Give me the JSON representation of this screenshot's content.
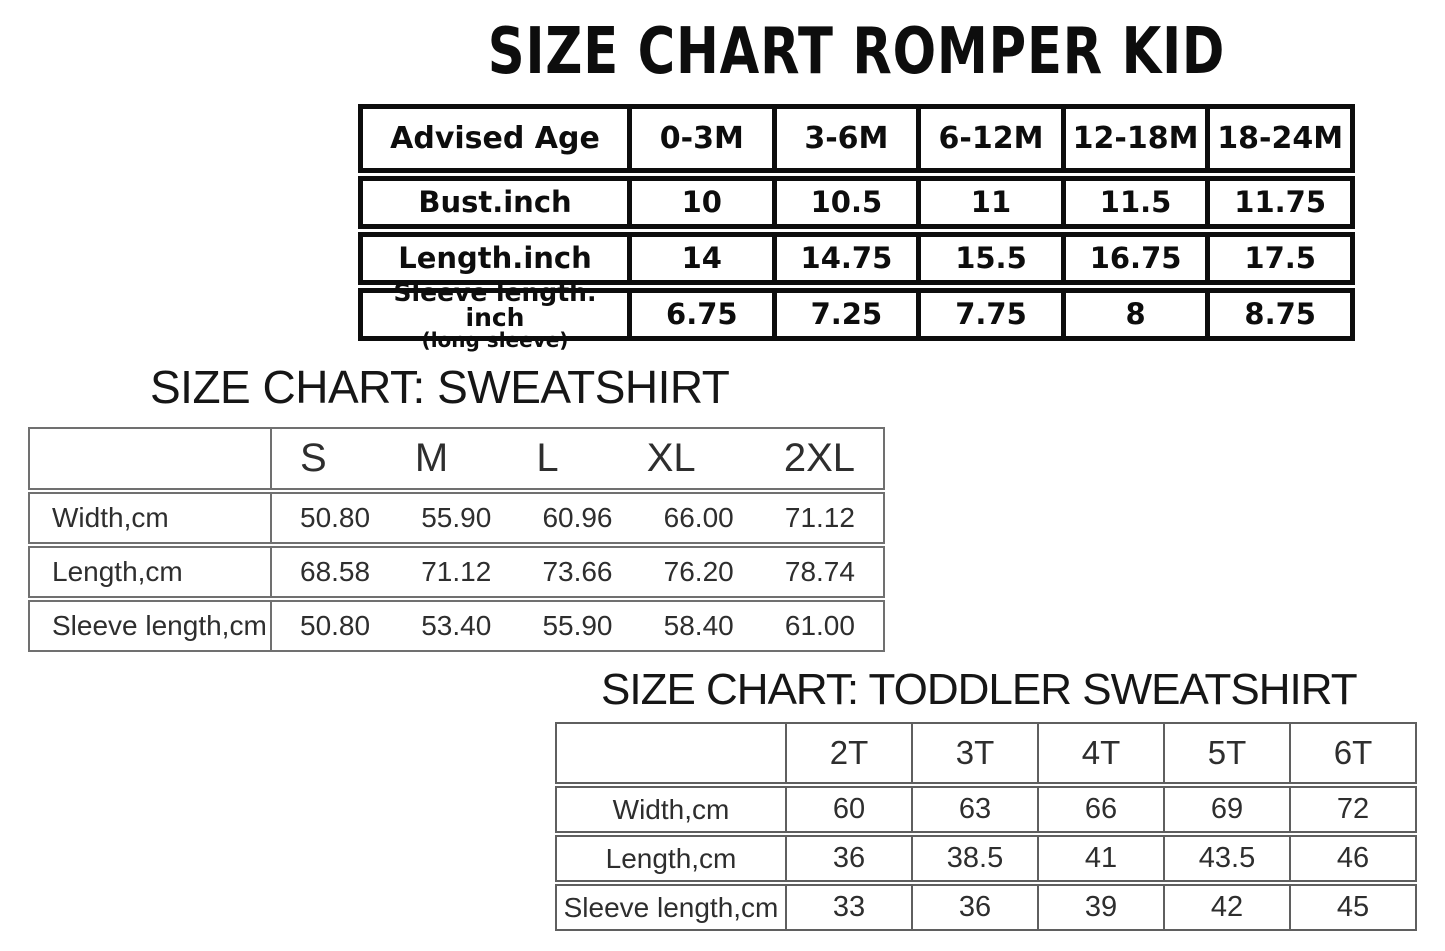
{
  "colors": {
    "background": "#ffffff",
    "ink": "#0d0d0d",
    "table_text_gray": "#2e2e2e",
    "sweatshirt_border": "#707070",
    "toddler_border": "#5f5f5f"
  },
  "romper": {
    "title": "SIZE CHART ROMPER KID",
    "header_label": "Advised Age",
    "sizes": [
      "0-3M",
      "3-6M",
      "6-12M",
      "12-18M",
      "18-24M"
    ],
    "rows": [
      {
        "label": "Bust.inch",
        "values": [
          "10",
          "10.5",
          "11",
          "11.5",
          "11.75"
        ]
      },
      {
        "label": "Length.inch",
        "values": [
          "14",
          "14.75",
          "15.5",
          "16.75",
          "17.5"
        ]
      },
      {
        "label": "Sleeve length. inch",
        "sublabel": "(long sleeve)",
        "values": [
          "6.75",
          "7.25",
          "7.75",
          "8",
          "8.75"
        ]
      }
    ]
  },
  "sweatshirt": {
    "title": "SIZE CHART: SWEATSHIRT",
    "sizes": [
      "S",
      "M",
      "L",
      "XL",
      "2XL"
    ],
    "rows": [
      {
        "label": "Width,cm",
        "values": [
          "50.80",
          "55.90",
          "60.96",
          "66.00",
          "71.12"
        ]
      },
      {
        "label": "Length,cm",
        "values": [
          "68.58",
          "71.12",
          "73.66",
          "76.20",
          "78.74"
        ]
      },
      {
        "label": "Sleeve length,cm",
        "values": [
          "50.80",
          "53.40",
          "55.90",
          "58.40",
          "61.00"
        ]
      }
    ]
  },
  "toddler": {
    "title": "SIZE CHART: TODDLER SWEATSHIRT",
    "sizes": [
      "2T",
      "3T",
      "4T",
      "5T",
      "6T"
    ],
    "rows": [
      {
        "label": "Width,cm",
        "values": [
          "60",
          "63",
          "66",
          "69",
          "72"
        ]
      },
      {
        "label": "Length,cm",
        "values": [
          "36",
          "38.5",
          "41",
          "43.5",
          "46"
        ]
      },
      {
        "label": "Sleeve length,cm",
        "values": [
          "33",
          "36",
          "39",
          "42",
          "45"
        ]
      }
    ]
  }
}
